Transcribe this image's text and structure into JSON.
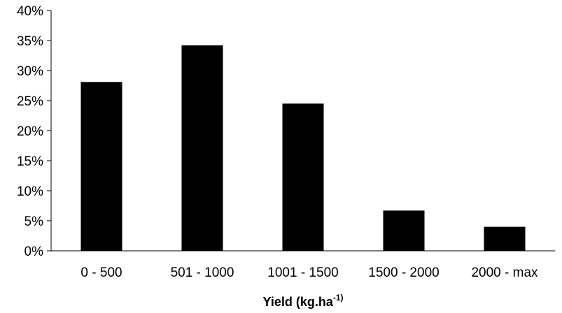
{
  "chart_data": {
    "type": "bar",
    "categories": [
      "0 - 500",
      "501 - 1000",
      "1001 - 1500",
      "1500 - 2000",
      "2000 - max"
    ],
    "values": [
      28.1,
      34.2,
      24.5,
      6.7,
      4.0
    ],
    "title": "",
    "xlabel": "Yield (kg.ha",
    "xlabel_superscript": "-1)",
    "ylabel": "",
    "ylim": [
      0,
      40
    ],
    "yticks": [
      "0%",
      "5%",
      "10%",
      "15%",
      "20%",
      "25%",
      "30%",
      "35%",
      "40%"
    ],
    "bar_color": "#000000",
    "grid": false,
    "legend": "none"
  }
}
